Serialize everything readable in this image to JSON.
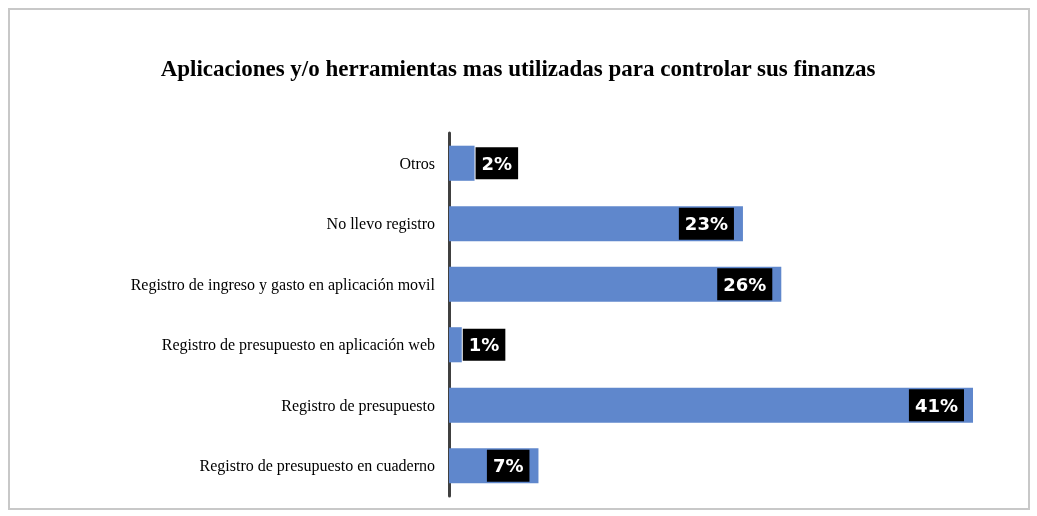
{
  "chart_data": {
    "type": "bar",
    "orientation": "horizontal",
    "title": "Aplicaciones y/o herramientas mas utilizadas para controlar sus finanzas",
    "categories": [
      "Otros",
      "No llevo registro",
      "Registro de ingreso y gasto en aplicación movil",
      "Registro de presupuesto en aplicación web",
      "Registro de presupuesto",
      "Registro de presupuesto en cuaderno"
    ],
    "values": [
      2,
      23,
      26,
      1,
      41,
      7
    ],
    "value_labels": [
      "2%",
      "23%",
      "26%",
      "1%",
      "41%",
      "7%"
    ],
    "color": "#5f87cc"
  }
}
